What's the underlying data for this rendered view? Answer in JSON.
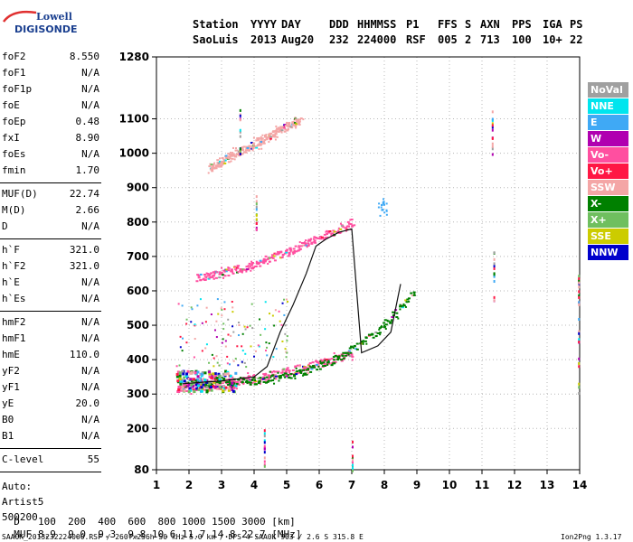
{
  "logo": {
    "line1": "Lowell",
    "line2": "DIGISONDE"
  },
  "header": {
    "row1": [
      "Station",
      "YYYY",
      "DAY",
      "DDD",
      "HHMMSS",
      "P1",
      "FFS",
      "S",
      "AXN",
      "PPS",
      "IGA",
      "PS"
    ],
    "row2": [
      "SaoLuis",
      "2013",
      "Aug20",
      "232",
      "224000",
      "RSF",
      "005",
      "2",
      "713",
      "100",
      "10+",
      "22"
    ]
  },
  "params": {
    "group1": [
      {
        "name": "foF2",
        "value": "8.550"
      },
      {
        "name": "foF1",
        "value": "N/A"
      },
      {
        "name": "foF1p",
        "value": "N/A"
      },
      {
        "name": "foE",
        "value": "N/A"
      },
      {
        "name": "foEp",
        "value": "0.48"
      },
      {
        "name": "fxI",
        "value": "8.90"
      },
      {
        "name": "foEs",
        "value": "N/A"
      },
      {
        "name": "fmin",
        "value": "1.70"
      }
    ],
    "group2": [
      {
        "name": "MUF(D)",
        "value": "22.74"
      },
      {
        "name": "M(D)",
        "value": "2.66"
      },
      {
        "name": "D",
        "value": "N/A"
      }
    ],
    "group3": [
      {
        "name": "h`F",
        "value": "321.0"
      },
      {
        "name": "h`F2",
        "value": "321.0"
      },
      {
        "name": "h`E",
        "value": "N/A"
      },
      {
        "name": "h`Es",
        "value": "N/A"
      }
    ],
    "group4": [
      {
        "name": "hmF2",
        "value": "N/A"
      },
      {
        "name": "hmF1",
        "value": "N/A"
      },
      {
        "name": "hmE",
        "value": "110.0"
      },
      {
        "name": "yF2",
        "value": "N/A"
      },
      {
        "name": "yF1",
        "value": "N/A"
      },
      {
        "name": "yE",
        "value": "20.0"
      },
      {
        "name": "B0",
        "value": "N/A"
      },
      {
        "name": "B1",
        "value": "N/A"
      }
    ],
    "group5": [
      {
        "name": "C-level",
        "value": "55"
      }
    ],
    "auto": [
      "Auto:",
      "Artist5",
      "500200"
    ]
  },
  "legend": [
    {
      "label": "NoVal",
      "color": "#a0a0a0"
    },
    {
      "label": "NNE",
      "color": "#00e5ee"
    },
    {
      "label": "E",
      "color": "#3fa9f5"
    },
    {
      "label": "W",
      "color": "#b000b0"
    },
    {
      "label": "Vo-",
      "color": "#ff4fa0"
    },
    {
      "label": "Vo+",
      "color": "#ff1744"
    },
    {
      "label": "SSW",
      "color": "#f4a6a6"
    },
    {
      "label": "X-",
      "color": "#008000"
    },
    {
      "label": "X+",
      "color": "#6fbf5f"
    },
    {
      "label": "SSE",
      "color": "#cccc00"
    },
    {
      "label": "NNW",
      "color": "#0000cc"
    }
  ],
  "footer": {
    "d_label": "D",
    "d_values": "100  200  400  600  800 1000 1500 3000 [km]",
    "muf_label": "MUF",
    "muf_values": "8.9  9.0  9.3  9.8 10.6 11.7 14.8 22.7 [MHz]",
    "file_line": "SAA0K_2013232224000.RSF / 260fx256h 50 kHz 5.0 km / DPS-4 SAA0K 903 / 2.6 S 315.8 E",
    "version": "Ion2Png 1.3.17"
  },
  "chart_data": {
    "type": "scatter",
    "xlim": [
      1,
      14
    ],
    "ylim": [
      80,
      1280
    ],
    "x_ticks": [
      "1",
      "2",
      "3",
      "4",
      "5",
      "6",
      "7",
      "8",
      "9",
      "10",
      "11",
      "12",
      "13",
      "14"
    ],
    "y_ticks": [
      {
        "label": "80",
        "value": 80
      },
      {
        "label": "200",
        "value": 200
      },
      {
        "label": "300",
        "value": 300
      },
      {
        "label": "400",
        "value": 400
      },
      {
        "label": "500",
        "value": 500
      },
      {
        "label": "600",
        "value": 600
      },
      {
        "label": "700",
        "value": 700
      },
      {
        "label": "800",
        "value": 800
      },
      {
        "label": "900",
        "value": 900
      },
      {
        "label": "1000",
        "value": 1000
      },
      {
        "label": "1100",
        "value": 1100
      },
      {
        "label": "1280",
        "value": 1280
      }
    ],
    "grid": true,
    "traces": [
      {
        "name": "F-trace",
        "color": "#ff4fa0",
        "x_from": 1.6,
        "x_to": 7.0,
        "y_from": 320,
        "y_to": 420,
        "curve": 1.6
      },
      {
        "name": "X-trace",
        "color": "#008000",
        "x_from": 1.8,
        "x_to": 8.9,
        "y_from": 335,
        "y_to": 600,
        "curve": 3.2
      },
      {
        "name": "Second-hop",
        "color": "#ff4fa0",
        "x_from": 2.2,
        "x_to": 7.0,
        "y_from": 640,
        "y_to": 800,
        "curve": 1.4
      },
      {
        "name": "Third-hop",
        "color": "#f4a6a6",
        "x_from": 2.6,
        "x_to": 5.4,
        "y_from": 960,
        "y_to": 1100,
        "curve": 1.0
      }
    ],
    "profile_line": [
      [
        1.8,
        330
      ],
      [
        2.5,
        335
      ],
      [
        3.0,
        338
      ],
      [
        3.6,
        345
      ],
      [
        4.0,
        350
      ],
      [
        4.4,
        380
      ],
      [
        4.8,
        480
      ],
      [
        5.2,
        560
      ],
      [
        5.6,
        650
      ],
      [
        5.9,
        730
      ],
      [
        6.2,
        750
      ],
      [
        6.6,
        770
      ],
      [
        7.0,
        780
      ],
      [
        7.3,
        420
      ],
      [
        7.8,
        440
      ],
      [
        8.2,
        480
      ],
      [
        8.5,
        620
      ]
    ]
  }
}
